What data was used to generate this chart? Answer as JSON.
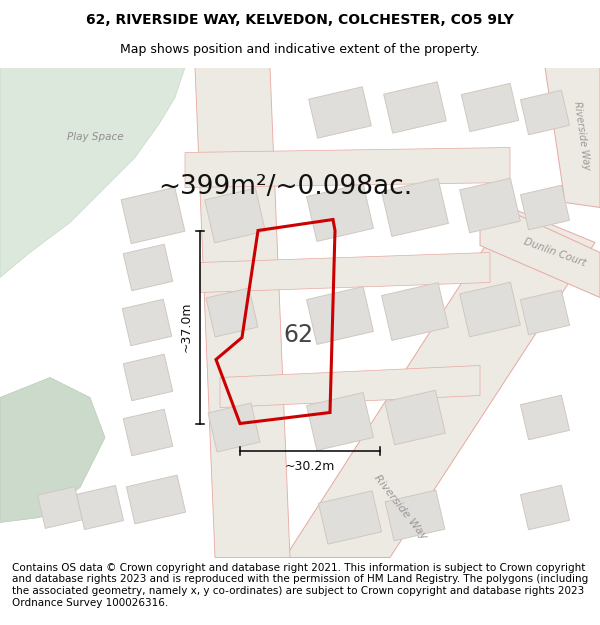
{
  "title_line1": "62, RIVERSIDE WAY, KELVEDON, COLCHESTER, CO5 9LY",
  "title_line2": "Map shows position and indicative extent of the property.",
  "area_text": "~399m²/~0.098ac.",
  "label_62": "62",
  "dim_height": "~37.0m",
  "dim_width": "~30.2m",
  "play_space_label": "Play Space",
  "riverside_way_label": "Riverside Way",
  "riverside_way_label2": "Riverside Way",
  "dunlin_court_label": "Dunlin Court",
  "footer_text": "Contains OS data © Crown copyright and database right 2021. This information is subject to Crown copyright and database rights 2023 and is reproduced with the permission of HM Land Registry. The polygons (including the associated geometry, namely x, y co-ordinates) are subject to Crown copyright and database rights 2023 Ordnance Survey 100026316.",
  "map_bg": "#f2f0ec",
  "green_color": "#dce8dc",
  "green2_color": "#ccdacc",
  "road_fill": "#ede9e3",
  "plot_fill": "#e0deda",
  "plot_stroke": "#d0c8c0",
  "red_color": "#cc0000",
  "pink_color": "#e8a8a0",
  "dim_color": "#000000",
  "label_color": "#555555",
  "white": "#ffffff",
  "title_fs": 10,
  "sub_fs": 9,
  "area_fs": 19,
  "num_fs": 17,
  "footer_fs": 7.5
}
